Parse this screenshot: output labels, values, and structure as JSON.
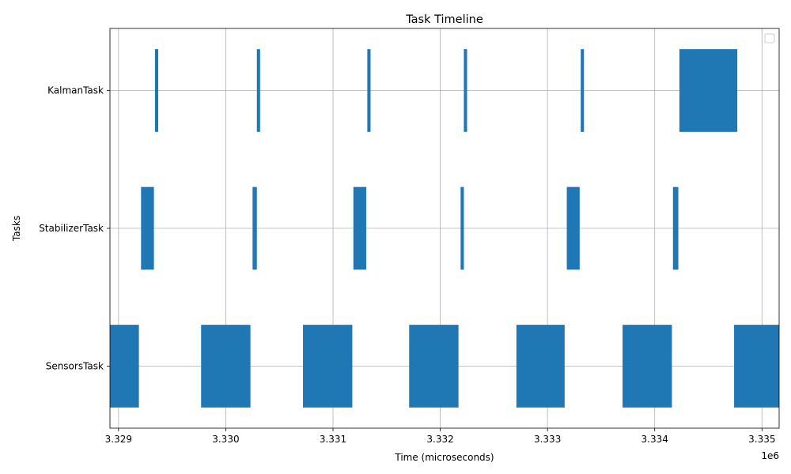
{
  "chart_data": {
    "type": "timeline",
    "title": "Task Timeline",
    "xlabel": "Time (microseconds)",
    "ylabel": "Tasks",
    "x_offset_label": "1e6",
    "xlim": [
      3.32892,
      3.33516
    ],
    "xticks": [
      3.329,
      3.33,
      3.331,
      3.332,
      3.333,
      3.334,
      3.335
    ],
    "xtick_labels": [
      "3.329",
      "3.330",
      "3.331",
      "3.332",
      "3.333",
      "3.334",
      "3.335"
    ],
    "tasks": [
      "SensorsTask",
      "StabilizerTask",
      "KalmanTask"
    ],
    "grid": true,
    "legend": "top-right (empty)",
    "bar_color": "#1f77b4",
    "intervals": {
      "SensorsTask": [
        [
          3.32892,
          3.32919
        ],
        [
          3.32977,
          3.33023
        ],
        [
          3.33072,
          3.33118
        ],
        [
          3.33171,
          3.33217
        ],
        [
          3.33271,
          3.33316
        ],
        [
          3.3337,
          3.33416
        ],
        [
          3.33474,
          3.33516
        ]
      ],
      "StabilizerTask": [
        [
          3.32921,
          3.32933
        ],
        [
          3.33025,
          3.33029
        ],
        [
          3.33119,
          3.33131
        ],
        [
          3.33219,
          3.33222
        ],
        [
          3.33318,
          3.3333
        ],
        [
          3.33417,
          3.33422
        ]
      ],
      "KalmanTask": [
        [
          3.32934,
          3.32937
        ],
        [
          3.33029,
          3.33032
        ],
        [
          3.33132,
          3.33135
        ],
        [
          3.33222,
          3.33225
        ],
        [
          3.33331,
          3.33334
        ],
        [
          3.33423,
          3.33477
        ]
      ]
    }
  }
}
